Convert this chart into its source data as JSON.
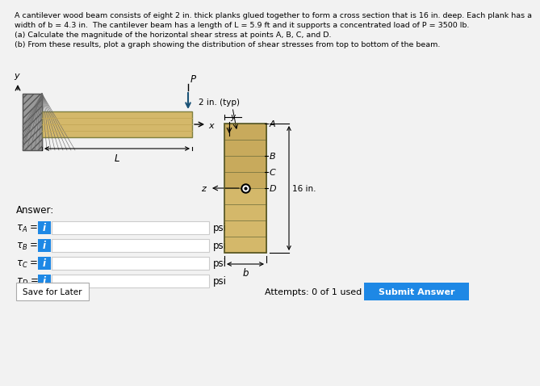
{
  "bg_color": "#f2f2f2",
  "text_color": "#000000",
  "title_lines": [
    "A cantilever wood beam consists of eight 2 in. thick planks glued together to form a cross section that is 16 in. deep. Each plank has a",
    "width of b = 4.3 in.  The cantilever beam has a length of L = 5.9 ft and it supports a concentrated load of P = 3500 lb.",
    "(a) Calculate the magnitude of the horizontal shear stress at points A, B, C, and D.",
    "(b) From these results, plot a graph showing the distribution of shear stresses from top to bottom of the beam."
  ],
  "wood_color_light": "#d4b86a",
  "wood_color_dark": "#b89848",
  "wood_grain_color": "#c4a858",
  "wall_color": "#999999",
  "wall_hatch_color": "#666666",
  "input_bg": "#ffffff",
  "input_border": "#cccccc",
  "button_color": "#1e88e5",
  "submit_color": "#1e88e5",
  "save_border": "#aaaaaa",
  "dim_line_color": "#333333",
  "beam_edge_color": "#808040",
  "cs_edge_color": "#666630"
}
